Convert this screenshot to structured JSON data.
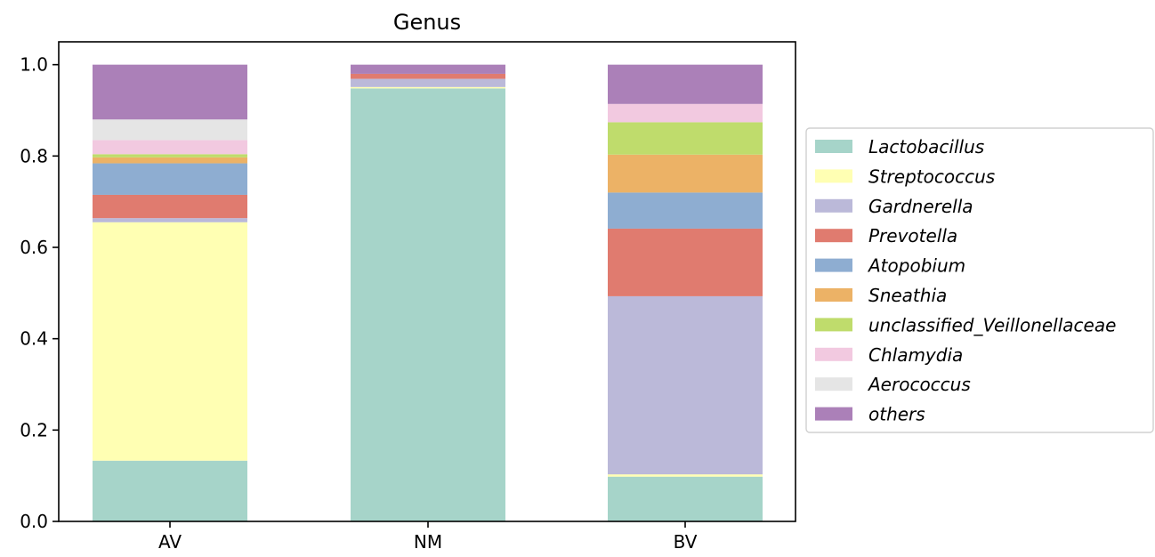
{
  "chart_data": {
    "type": "bar",
    "stacked": true,
    "title": "Genus",
    "xlabel": "",
    "ylabel": "",
    "categories": [
      "AV",
      "NM",
      "BV"
    ],
    "ylim": [
      0,
      1.05
    ],
    "yticks": [
      "0.0",
      "0.2",
      "0.4",
      "0.6",
      "0.8",
      "1.0"
    ],
    "grid": false,
    "legend_position": "right",
    "series": [
      {
        "name": "Lactobacillus",
        "color": "#a6d4c9",
        "values": [
          0.133,
          0.948,
          0.098
        ]
      },
      {
        "name": "Streptococcus",
        "color": "#ffffb3",
        "values": [
          0.522,
          0.003,
          0.005
        ]
      },
      {
        "name": "Gardnerella",
        "color": "#bbb9d9",
        "values": [
          0.009,
          0.018,
          0.39
        ]
      },
      {
        "name": "Prevotella",
        "color": "#e07b6f",
        "values": [
          0.051,
          0.011,
          0.148
        ]
      },
      {
        "name": "Atopobium",
        "color": "#8eadd1",
        "values": [
          0.069,
          0.0,
          0.079
        ]
      },
      {
        "name": "Sneathia",
        "color": "#ecb266",
        "values": [
          0.013,
          0.0,
          0.083
        ]
      },
      {
        "name": "unclassified_Veillonellaceae",
        "color": "#bfdc6c",
        "values": [
          0.007,
          0.0,
          0.071
        ]
      },
      {
        "name": "Chlamydia",
        "color": "#f2c9e0",
        "values": [
          0.031,
          0.0,
          0.04
        ]
      },
      {
        "name": "Aerococcus",
        "color": "#e5e5e5",
        "values": [
          0.045,
          0.0,
          0.0
        ]
      },
      {
        "name": "others",
        "color": "#ab80b8",
        "values": [
          0.12,
          0.02,
          0.086
        ]
      }
    ]
  }
}
